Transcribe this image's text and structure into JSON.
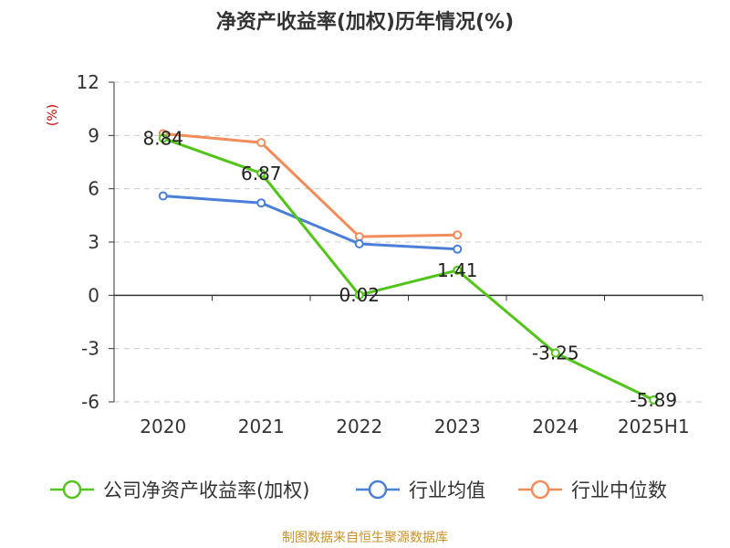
{
  "title": "净资产收益率(加权)历年情况(%)",
  "source": "制图数据来自恒生聚源数据库",
  "chart_data": {
    "type": "line",
    "title": "净资产收益率(加权)历年情况(%)",
    "ylabel": "(%)",
    "xlabel": "",
    "categories": [
      "2020",
      "2021",
      "2022",
      "2023",
      "2024",
      "2025H1"
    ],
    "ylim": [
      -6,
      12
    ],
    "yticks": [
      12,
      9,
      6,
      3,
      0,
      -3,
      -6
    ],
    "ytick_labels": [
      "12",
      "9",
      "6",
      "3",
      "0",
      "-3",
      "-6"
    ],
    "grid": true,
    "legend_position": "bottom",
    "series": [
      {
        "name": "公司净资产收益率(加权)",
        "color": "#52c41a",
        "values": [
          8.84,
          6.87,
          0.02,
          1.41,
          -3.25,
          -5.89
        ],
        "data_labels": [
          "8.84",
          "6.87",
          "0.02",
          "1.41",
          "-3.25",
          "-5.89"
        ]
      },
      {
        "name": "行业均值",
        "color": "#4a7fd8",
        "values": [
          5.6,
          5.2,
          2.9,
          2.6,
          null,
          null
        ]
      },
      {
        "name": "行业中位数",
        "color": "#f28c5a",
        "values": [
          9.1,
          8.6,
          3.3,
          3.4,
          null,
          null
        ]
      }
    ]
  }
}
